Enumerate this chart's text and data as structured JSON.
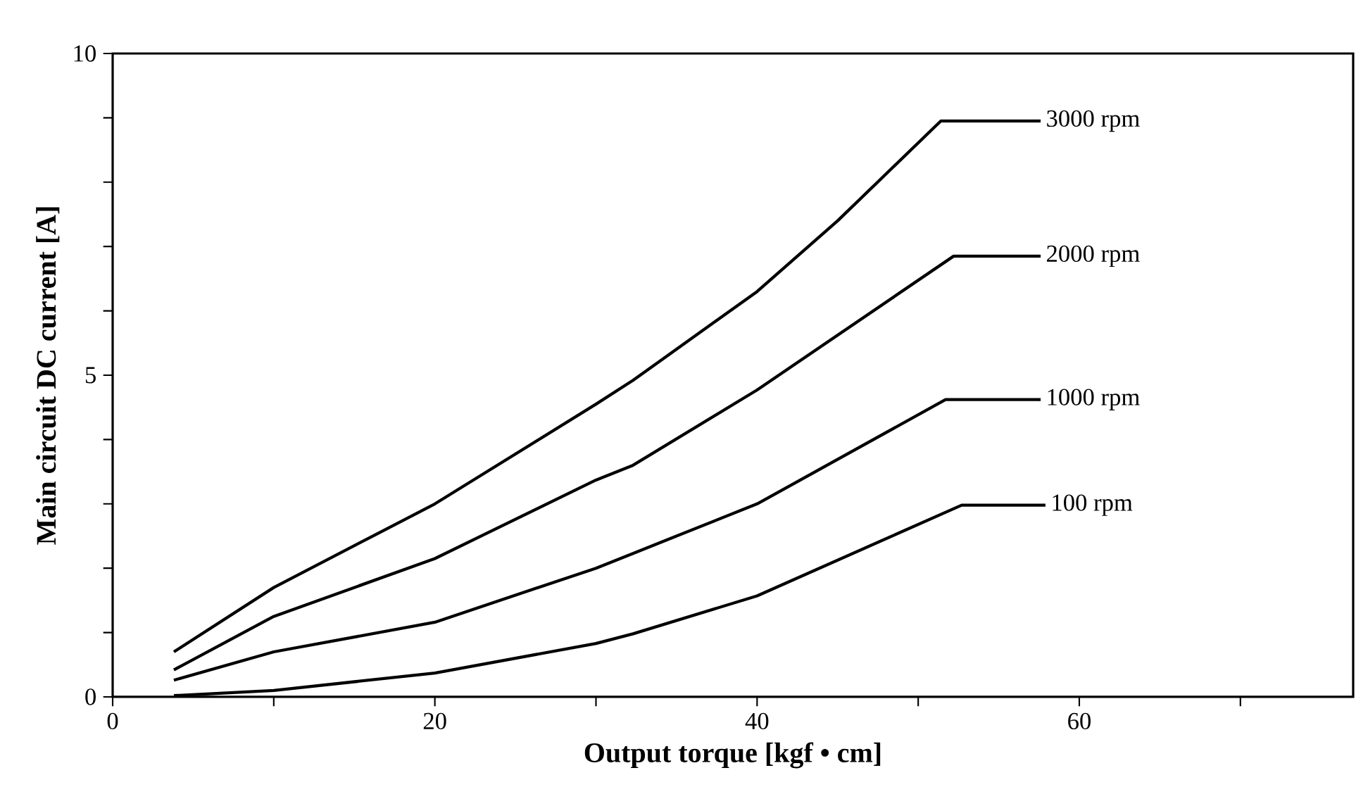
{
  "chart_data": {
    "type": "line",
    "xlabel": "Output torque [kgf • cm]",
    "ylabel": "Main circuit DC current [A]",
    "xlim": [
      0,
      77
    ],
    "ylim": [
      0,
      10
    ],
    "xticks": [
      0,
      {
        "value": 10,
        "label": null
      },
      20,
      {
        "value": 30,
        "label": null
      },
      40,
      {
        "value": 50,
        "label": null
      },
      60,
      {
        "value": 70,
        "label": null
      }
    ],
    "yticks": [
      0,
      {
        "value": 1,
        "label": null
      },
      {
        "value": 2,
        "label": null
      },
      {
        "value": 3,
        "label": null
      },
      {
        "value": 4,
        "label": null
      },
      5,
      {
        "value": 6,
        "label": null
      },
      {
        "value": 7,
        "label": null
      },
      {
        "value": 8,
        "label": null
      },
      {
        "value": 9,
        "label": null
      },
      10
    ],
    "grid": false,
    "legend": false,
    "marker": "none",
    "line_style": "solid",
    "series": [
      {
        "name": "3000 rpm",
        "color": "#000000",
        "x": [
          3.8,
          10,
          20,
          30,
          32.3,
          40,
          45,
          51.4,
          57.6
        ],
        "values": [
          0.7,
          1.7,
          3.0,
          4.55,
          4.92,
          6.3,
          7.4,
          8.95,
          8.95
        ]
      },
      {
        "name": "2000 rpm",
        "color": "#000000",
        "x": [
          3.8,
          10,
          20,
          30,
          32.3,
          40,
          52.2,
          57.6
        ],
        "values": [
          0.42,
          1.25,
          2.15,
          3.37,
          3.6,
          4.77,
          6.85,
          6.85
        ]
      },
      {
        "name": "1000 rpm",
        "color": "#000000",
        "x": [
          3.8,
          10,
          20,
          30,
          32.3,
          40,
          51.7,
          57.6
        ],
        "values": [
          0.26,
          0.7,
          1.16,
          2.0,
          2.23,
          3.0,
          4.62,
          4.62
        ]
      },
      {
        "name": "100 rpm",
        "color": "#000000",
        "x": [
          3.8,
          10,
          20,
          30,
          32.3,
          40,
          52.7,
          57.9
        ],
        "values": [
          0.02,
          0.1,
          0.37,
          0.83,
          0.98,
          1.57,
          2.98,
          2.98
        ]
      }
    ]
  }
}
